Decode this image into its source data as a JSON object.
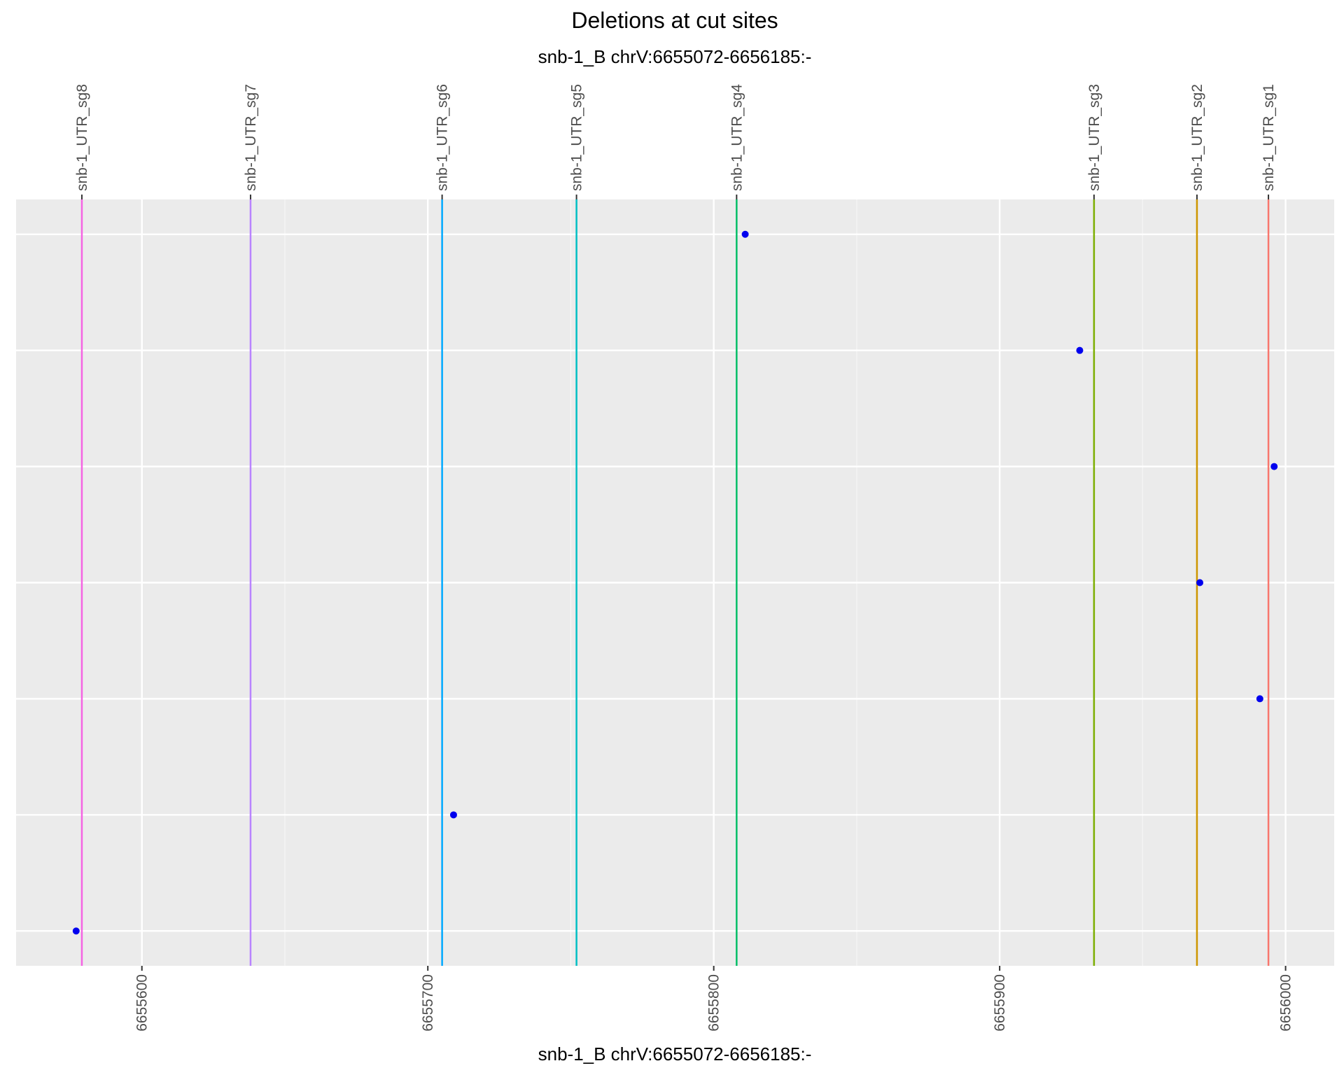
{
  "chart_data": {
    "type": "scatter",
    "title": "Deletions at cut sites",
    "subtitle": "snb-1_B chrV:6655072-6656185:-",
    "xlabel": "snb-1_B chrV:6655072-6656185:-",
    "ylabel": "",
    "xlim": [
      6655556,
      6656017
    ],
    "ylim": [
      0.7,
      7.3
    ],
    "x_ticks": [
      6655600,
      6655700,
      6655800,
      6655900,
      6656000
    ],
    "x_tick_labels": [
      "6655600",
      "6655700",
      "6655800",
      "6655900",
      "6656000"
    ],
    "y_gridlines": [
      1,
      2,
      3,
      4,
      5,
      6,
      7
    ],
    "grid": true,
    "point_color": "#0000ee",
    "cut_sites": [
      {
        "name": "snb-1_UTR_sg8",
        "x": 6655579,
        "color": "#f564e3"
      },
      {
        "name": "snb-1_UTR_sg7",
        "x": 6655638,
        "color": "#b983ff"
      },
      {
        "name": "snb-1_UTR_sg6",
        "x": 6655705,
        "color": "#00a9ff"
      },
      {
        "name": "snb-1_UTR_sg5",
        "x": 6655752,
        "color": "#00bfc4"
      },
      {
        "name": "snb-1_UTR_sg4",
        "x": 6655808,
        "color": "#00be67"
      },
      {
        "name": "snb-1_UTR_sg3",
        "x": 6655933,
        "color": "#7cae00"
      },
      {
        "name": "snb-1_UTR_sg2",
        "x": 6655969,
        "color": "#cd9600"
      },
      {
        "name": "snb-1_UTR_sg1",
        "x": 6655994,
        "color": "#f8766d"
      }
    ],
    "points": [
      {
        "x": 6655811,
        "y": 7
      },
      {
        "x": 6655928,
        "y": 6
      },
      {
        "x": 6655996,
        "y": 5
      },
      {
        "x": 6655970,
        "y": 4
      },
      {
        "x": 6655991,
        "y": 3
      },
      {
        "x": 6655709,
        "y": 2
      },
      {
        "x": 6655577,
        "y": 1
      }
    ]
  }
}
